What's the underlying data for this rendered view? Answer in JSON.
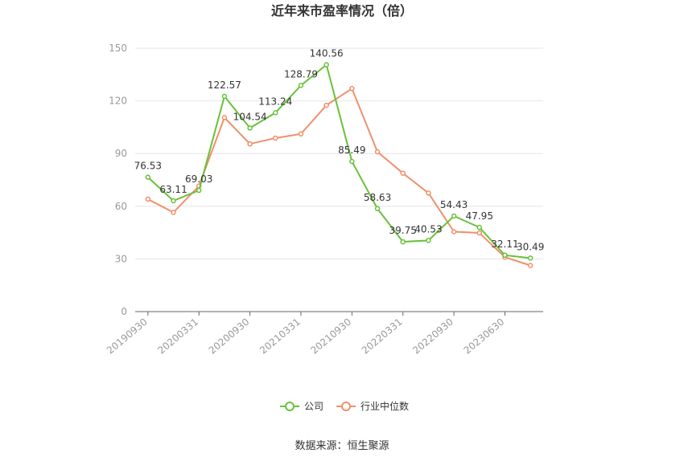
{
  "chart_data": {
    "type": "line",
    "title": "近年来市盈率情况（倍）",
    "source": "数据来源：恒生聚源",
    "ylim": [
      0,
      150
    ],
    "yticks": [
      0,
      30,
      60,
      90,
      120,
      150
    ],
    "x_labels_shown": [
      "20190930",
      "20200331",
      "20200930",
      "20210331",
      "20210930",
      "20220331",
      "20220930",
      "20230630"
    ],
    "x_count": 16,
    "grid": true,
    "legend_position": "bottom",
    "series": [
      {
        "name": "公司",
        "color": "#67c23a",
        "values": [
          76.53,
          63.11,
          69.03,
          122.57,
          104.54,
          113.24,
          128.79,
          140.56,
          85.49,
          58.63,
          39.75,
          40.53,
          54.43,
          47.95,
          32.11,
          30.49
        ],
        "labels": [
          "76.53",
          "63.11",
          "69.03",
          "122.57",
          "104.54",
          "113.24",
          "128.79",
          "140.56",
          "85.49",
          "58.63",
          "39.75",
          "40.53",
          "54.43",
          "47.95",
          "32.11",
          "30.49"
        ]
      },
      {
        "name": "行业中位数",
        "color": "#f0906a",
        "values": [
          64.0,
          56.5,
          71.5,
          110.5,
          95.5,
          98.8,
          101.2,
          117.5,
          127.0,
          91.0,
          78.8,
          67.5,
          45.5,
          44.8,
          31.0,
          26.3
        ]
      }
    ]
  }
}
